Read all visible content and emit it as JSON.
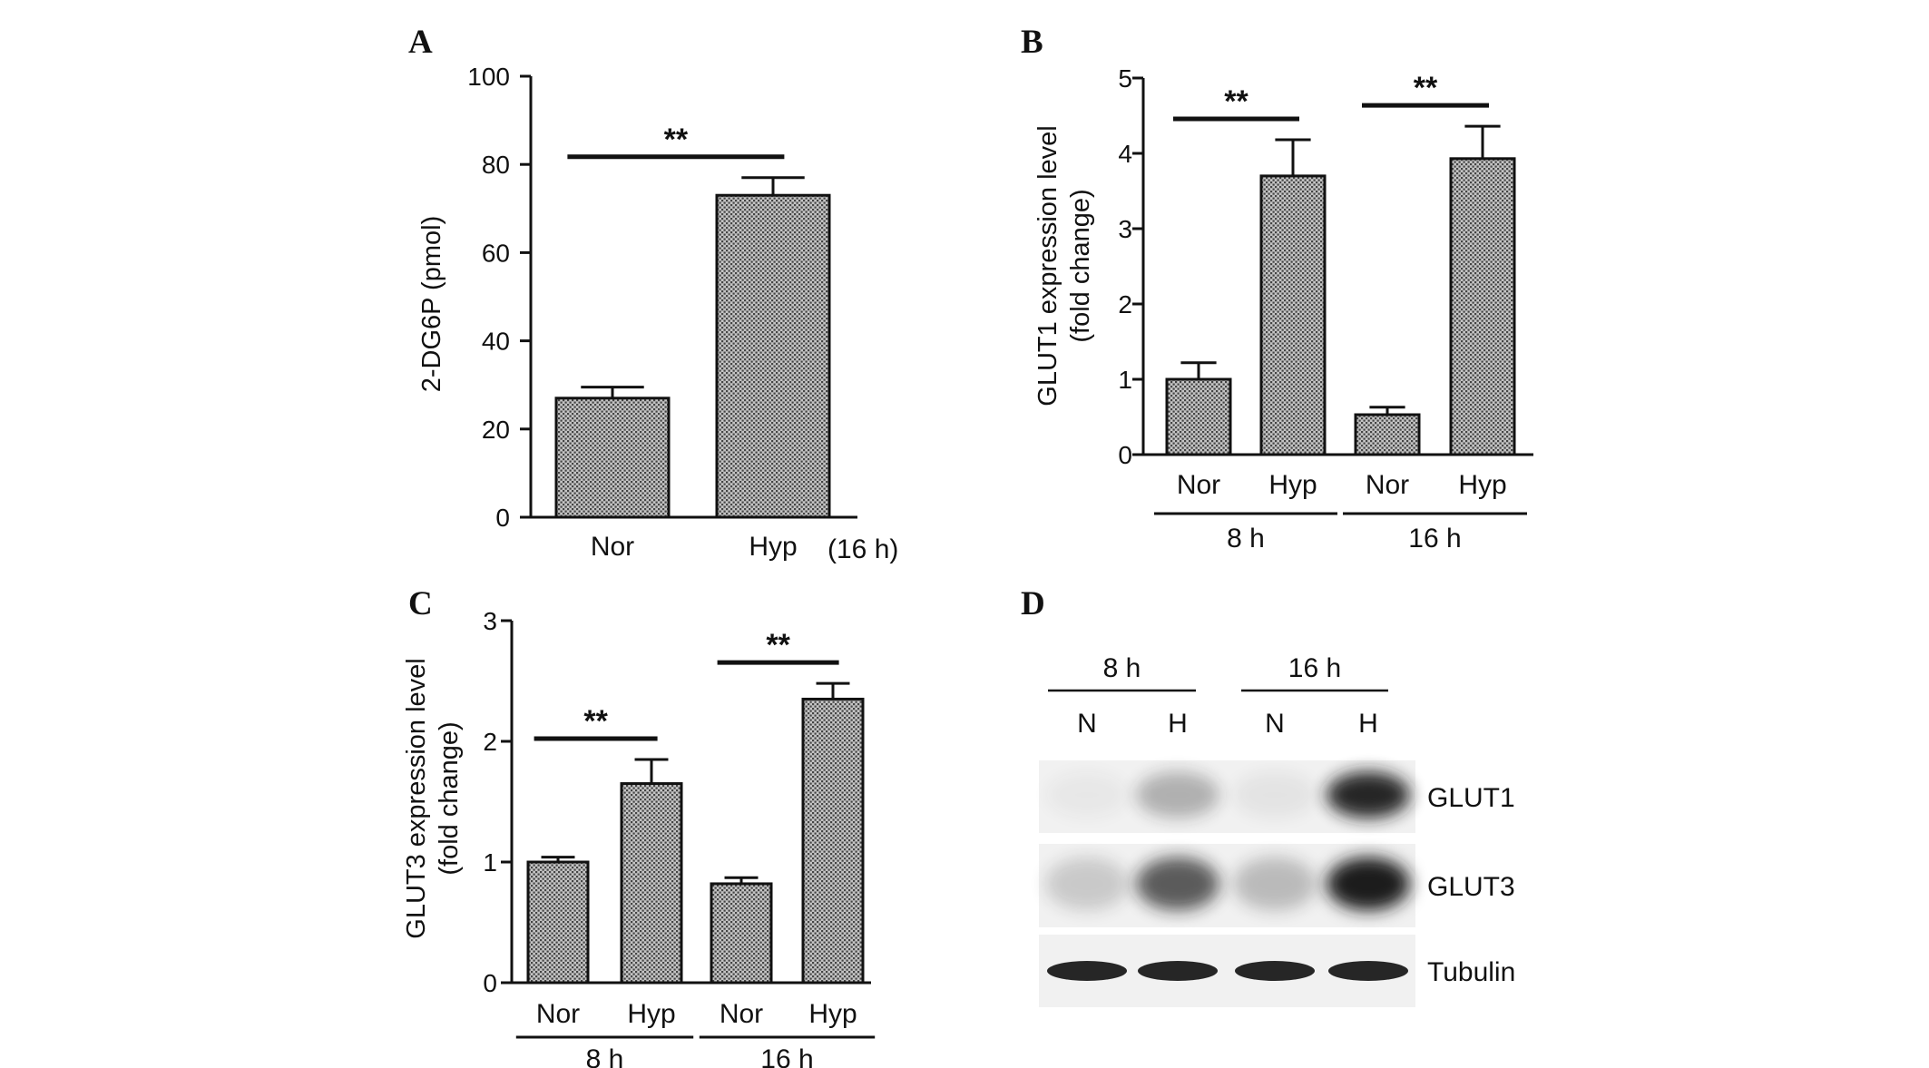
{
  "colors": {
    "axis": "#111111",
    "bar_fill": "#bdbdbd",
    "hatch": "#5a5a5a",
    "blot_band": "#1a1a1a"
  },
  "chart_data": [
    {
      "panel": "A",
      "type": "bar",
      "ylabel": "2-DG6P (pmol)",
      "ylim": [
        0,
        100
      ],
      "yticks": [
        "0",
        "20",
        "40",
        "60",
        "80",
        "100"
      ],
      "categories": [
        "Nor",
        "Hyp"
      ],
      "values": [
        27,
        73
      ],
      "errors": [
        2.5,
        4
      ],
      "condition_label": "(16 h)",
      "significance": [
        {
          "from": 0,
          "to": 1,
          "label": "**"
        }
      ]
    },
    {
      "panel": "B",
      "type": "bar",
      "ylabel": "GLUT1 expression level",
      "ylabel2": "(fold change)",
      "ylim": [
        0,
        5
      ],
      "yticks": [
        "0",
        "1",
        "2",
        "3",
        "4",
        "5"
      ],
      "categories": [
        "Nor",
        "Hyp",
        "Nor",
        "Hyp"
      ],
      "values": [
        1.0,
        3.7,
        0.53,
        3.93
      ],
      "errors": [
        0.22,
        0.48,
        0.1,
        0.43
      ],
      "groups": [
        {
          "label": "8 h",
          "from": 0,
          "to": 1
        },
        {
          "label": "16 h",
          "from": 2,
          "to": 3
        }
      ],
      "significance": [
        {
          "from": 0,
          "to": 1,
          "label": "**"
        },
        {
          "from": 2,
          "to": 3,
          "label": "**"
        }
      ]
    },
    {
      "panel": "C",
      "type": "bar",
      "ylabel": "GLUT3 expression level",
      "ylabel2": "(fold change)",
      "ylim": [
        0,
        3
      ],
      "yticks": [
        "0",
        "1",
        "2",
        "3"
      ],
      "categories": [
        "Nor",
        "Hyp",
        "Nor",
        "Hyp"
      ],
      "values": [
        1.0,
        1.65,
        0.82,
        2.35
      ],
      "errors": [
        0.04,
        0.2,
        0.05,
        0.13
      ],
      "groups": [
        {
          "label": "8 h",
          "from": 0,
          "to": 1
        },
        {
          "label": "16 h",
          "from": 2,
          "to": 3
        }
      ],
      "significance": [
        {
          "from": 0,
          "to": 1,
          "label": "**"
        },
        {
          "from": 2,
          "to": 3,
          "label": "**"
        }
      ]
    }
  ],
  "blot": {
    "panel": "D",
    "time_labels": [
      "8 h",
      "16 h"
    ],
    "lane_labels": [
      "N",
      "H",
      "N",
      "H"
    ],
    "rows": [
      {
        "label": "GLUT1",
        "intensity": [
          0.04,
          0.3,
          0.06,
          0.95
        ]
      },
      {
        "label": "GLUT3",
        "intensity": [
          0.18,
          0.7,
          0.25,
          1.0
        ]
      },
      {
        "label": "Tubulin",
        "intensity": [
          0.95,
          0.95,
          0.95,
          0.95
        ]
      }
    ]
  }
}
